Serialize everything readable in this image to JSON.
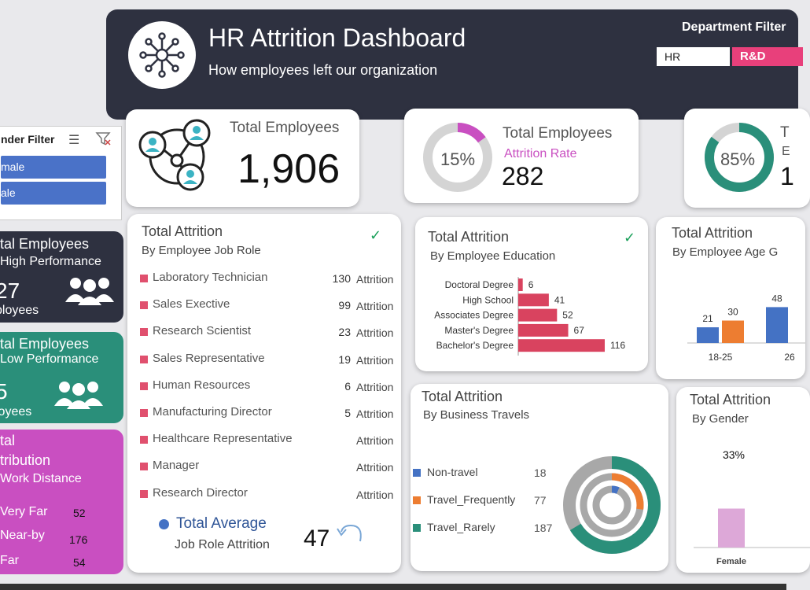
{
  "header": {
    "title": "HR Attrition Dashboard",
    "subtitle": "How employees left our organization",
    "department_filter_label": "Department Filter",
    "departments": [
      "HR",
      "R&D"
    ]
  },
  "gender_filter": {
    "title": "nder Filter",
    "options": [
      "male",
      "ale"
    ]
  },
  "total_employees": {
    "label": "Total Employees",
    "value": "1,906"
  },
  "attrition_rate": {
    "label": "Total Employees",
    "sublabel": "Attrition Rate",
    "percent": "15%",
    "fraction": 0.15,
    "count": "282"
  },
  "active_rate": {
    "label": "T",
    "sublabel": "E",
    "percent": "85%",
    "fraction": 0.85,
    "count": "1"
  },
  "high_perf": {
    "l1": "tal Employees",
    "l2": "High Performance",
    "value": "27",
    "unit": "ployees"
  },
  "low_perf": {
    "l1": "tal Employees",
    "l2": "Low Performance",
    "value": "5",
    "unit": "loyees"
  },
  "distance": {
    "l1": "tal",
    "l2": "tribution",
    "l3": "Work Distance",
    "rows": [
      {
        "label": "Very Far",
        "value": "52"
      },
      {
        "label": "Near-by",
        "value": "176"
      },
      {
        "label": "Far",
        "value": "54"
      }
    ]
  },
  "job_role": {
    "title": "Total Attrition",
    "subtitle": "By Employee Job Role",
    "unit": "Attrition",
    "rows": [
      {
        "name": "Laboratory Technician",
        "value": "130"
      },
      {
        "name": "Sales Exective",
        "value": "99"
      },
      {
        "name": "Research Scientist",
        "value": "23"
      },
      {
        "name": "Sales Representative",
        "value": "19"
      },
      {
        "name": "Human Resources",
        "value": "6"
      },
      {
        "name": "Manufacturing Director",
        "value": "5"
      },
      {
        "name": "Healthcare Representative",
        "value": ""
      },
      {
        "name": "Manager",
        "value": ""
      },
      {
        "name": "Research Director",
        "value": ""
      }
    ],
    "avg_label": "Total Average",
    "avg_sub": "Job Role Attrition",
    "avg_value": "47"
  },
  "chart_data": [
    {
      "type": "bar",
      "orientation": "horizontal",
      "title": "Total Attrition",
      "subtitle": "By Employee Education",
      "categories": [
        "Doctoral Degree",
        "High School",
        "Associates Degree",
        "Master's Degree",
        "Bachelor's Degree"
      ],
      "values": [
        6,
        41,
        52,
        67,
        116
      ],
      "color": "#d9435f"
    },
    {
      "type": "bar",
      "title": "Total Attrition",
      "subtitle": "By Employee Age G",
      "categories": [
        "18-25",
        "26"
      ],
      "series": [
        {
          "values": [
            21,
            48
          ],
          "color": "#4472c4"
        },
        {
          "values": [
            30,
            null
          ],
          "color": "#ed7d31"
        }
      ]
    },
    {
      "type": "pie",
      "title": "Total Attrition",
      "subtitle": "By Business Travels",
      "categories": [
        "Non-travel",
        "Travel_Frequently",
        "Travel_Rarely"
      ],
      "values": [
        18,
        77,
        187
      ],
      "colors": [
        "#4472c4",
        "#ed7d31",
        "#2a8f7a"
      ]
    },
    {
      "type": "bar",
      "title": "Total Attrition",
      "subtitle": "By Gender",
      "categories": [
        "Female"
      ],
      "values": [
        0.33
      ],
      "data_labels": [
        "33%"
      ],
      "color": "#dda8d8"
    }
  ]
}
